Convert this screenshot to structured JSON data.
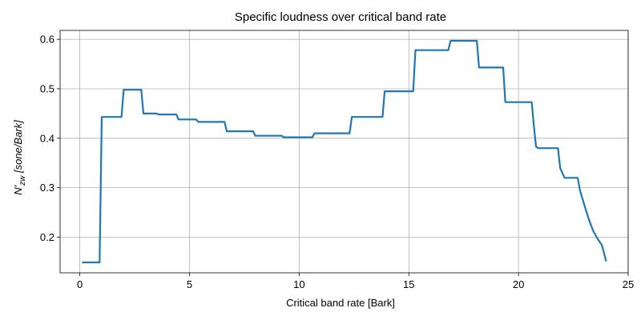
{
  "chart_data": {
    "type": "line",
    "title": "Specific loudness over critical band rate",
    "xlabel": "Critical band rate [Bark]",
    "ylabel": "N'zw [sone/Bark]",
    "ylabel_main": "N'",
    "ylabel_sub": "zw",
    "ylabel_unit": "[sone/Bark]",
    "xlim": [
      -0.9,
      25.0
    ],
    "ylim": [
      0.128,
      0.618
    ],
    "xticks": [
      0,
      5,
      10,
      15,
      20,
      25
    ],
    "xtick_labels": [
      "0",
      "5",
      "10",
      "15",
      "20",
      "25"
    ],
    "yticks": [
      0.2,
      0.3,
      0.4,
      0.5,
      0.6
    ],
    "ytick_labels": [
      "0.2",
      "0.3",
      "0.4",
      "0.5",
      "0.6"
    ],
    "grid": true,
    "legend": false,
    "series": [
      {
        "color": "#1f77b4",
        "x": [
          0.1,
          0.9,
          1.0,
          1.9,
          2.0,
          2.8,
          2.9,
          3.5,
          3.6,
          4.4,
          4.5,
          5.3,
          5.4,
          6.6,
          6.7,
          7.9,
          8.0,
          9.2,
          9.3,
          10.6,
          10.7,
          12.3,
          12.4,
          13.8,
          13.9,
          15.2,
          15.3,
          16.8,
          16.9,
          18.1,
          18.2,
          19.3,
          19.4,
          20.6,
          20.7,
          20.8,
          20.9,
          21.8,
          21.9,
          22.1,
          22.7,
          22.8,
          23.0,
          23.2,
          23.4,
          23.6,
          23.8,
          24.0
        ],
        "y": [
          0.149,
          0.149,
          0.443,
          0.443,
          0.498,
          0.498,
          0.45,
          0.45,
          0.448,
          0.448,
          0.438,
          0.438,
          0.433,
          0.433,
          0.414,
          0.414,
          0.405,
          0.405,
          0.402,
          0.402,
          0.41,
          0.41,
          0.443,
          0.443,
          0.495,
          0.495,
          0.578,
          0.578,
          0.597,
          0.597,
          0.543,
          0.543,
          0.473,
          0.473,
          0.425,
          0.383,
          0.38,
          0.38,
          0.34,
          0.32,
          0.32,
          0.295,
          0.265,
          0.237,
          0.213,
          0.197,
          0.184,
          0.151
        ]
      }
    ]
  }
}
